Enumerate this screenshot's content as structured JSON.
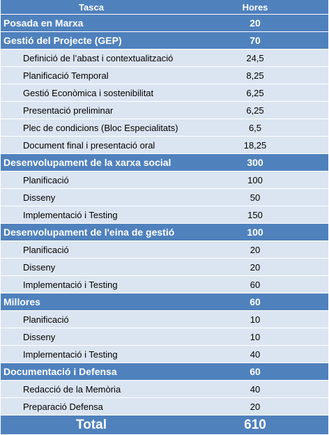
{
  "header": {
    "task": "Tasca",
    "hours": "Hores"
  },
  "rows": [
    {
      "type": "group",
      "task": "Posada en Marxa",
      "hours": "20"
    },
    {
      "type": "group",
      "task": "Gestió del Projecte (GEP)",
      "hours": "70"
    },
    {
      "type": "sub",
      "task": "Definició de l’abast i contextualització",
      "hours": "24,5"
    },
    {
      "type": "sub",
      "task": "Planificació Temporal",
      "hours": "8,25"
    },
    {
      "type": "sub",
      "task": "Gestió Econòmica i sostenibilitat",
      "hours": "6,25"
    },
    {
      "type": "sub",
      "task": "Presentació preliminar",
      "hours": "6,25"
    },
    {
      "type": "sub",
      "task": "Plec de condicions (Bloc Especialitats)",
      "hours": "6,5"
    },
    {
      "type": "sub",
      "task": "Document final i presentació oral",
      "hours": "18,25"
    },
    {
      "type": "group",
      "task": "Desenvolupament de la xarxa social",
      "hours": "300"
    },
    {
      "type": "sub",
      "task": "Planificació",
      "hours": "100"
    },
    {
      "type": "sub",
      "task": "Disseny",
      "hours": "50"
    },
    {
      "type": "sub",
      "task": "Implementació i Testing",
      "hours": "150"
    },
    {
      "type": "group",
      "task": "Desenvolupament de l'eina de gestió",
      "hours": "100"
    },
    {
      "type": "sub",
      "task": "Planificació",
      "hours": "20"
    },
    {
      "type": "sub",
      "task": "Disseny",
      "hours": "20"
    },
    {
      "type": "sub",
      "task": "Implementació i Testing",
      "hours": "60"
    },
    {
      "type": "group",
      "task": "Millores",
      "hours": "60"
    },
    {
      "type": "sub",
      "task": "Planificació",
      "hours": "10"
    },
    {
      "type": "sub",
      "task": "Disseny",
      "hours": "10"
    },
    {
      "type": "sub",
      "task": "Implementació i Testing",
      "hours": "40"
    },
    {
      "type": "group",
      "task": "Documentació i Defensa",
      "hours": "60"
    },
    {
      "type": "sub",
      "task": "Redacció de la Memòria",
      "hours": "40"
    },
    {
      "type": "sub",
      "task": "Preparació Defensa",
      "hours": "20"
    }
  ],
  "total": {
    "label": "Total",
    "value": "610"
  },
  "colors": {
    "header_bg": "#4f81bd",
    "row_bg": "#dbe5f1"
  }
}
